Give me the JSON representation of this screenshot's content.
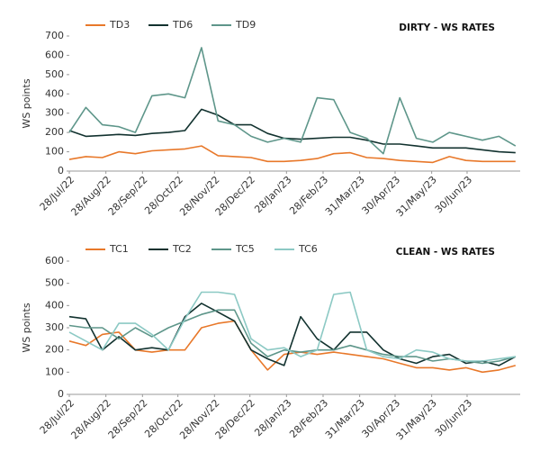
{
  "chart_data": [
    {
      "type": "line",
      "title": "DIRTY - WS RATES",
      "y_label": "WS points",
      "x": [
        "2022-07-28",
        "2022-08-11",
        "2022-08-25",
        "2022-09-08",
        "2022-09-22",
        "2022-10-06",
        "2022-10-20",
        "2022-11-03",
        "2022-11-17",
        "2022-12-01",
        "2022-12-15",
        "2022-12-29",
        "2023-01-12",
        "2023-01-26",
        "2023-02-09",
        "2023-02-23",
        "2023-03-09",
        "2023-03-23",
        "2023-04-06",
        "2023-04-20",
        "2023-05-04",
        "2023-05-18",
        "2023-06-01",
        "2023-06-15",
        "2023-06-29",
        "2023-07-13",
        "2023-07-27",
        "2023-08-10"
      ],
      "xlim": [
        "2022-07-28",
        "2023-08-14"
      ],
      "xticks": [
        {
          "value": "2022-07-28",
          "label": "28/Jul/22"
        },
        {
          "value": "2022-08-28",
          "label": "28/Aug/22"
        },
        {
          "value": "2022-09-28",
          "label": "28/Sep/22"
        },
        {
          "value": "2022-10-28",
          "label": "28/Oct/22"
        },
        {
          "value": "2022-11-28",
          "label": "28/Nov/22"
        },
        {
          "value": "2022-12-28",
          "label": "28/Dec/22"
        },
        {
          "value": "2023-01-28",
          "label": "28/Jan/23"
        },
        {
          "value": "2023-02-28",
          "label": "28/Feb/23"
        },
        {
          "value": "2023-03-31",
          "label": "31/Mar/23"
        },
        {
          "value": "2023-04-30",
          "label": "30/Apr/23"
        },
        {
          "value": "2023-05-31",
          "label": "31/May/23"
        },
        {
          "value": "2023-06-30",
          "label": "30/Jun/23"
        }
      ],
      "ylim": [
        0,
        700
      ],
      "yticks": [
        0,
        100,
        200,
        300,
        400,
        500,
        600,
        700
      ],
      "series": [
        {
          "name": "TD3",
          "color": "#e8782a",
          "values": [
            60,
            75,
            70,
            100,
            90,
            105,
            110,
            115,
            130,
            80,
            75,
            70,
            50,
            50,
            55,
            65,
            90,
            95,
            70,
            65,
            55,
            50,
            45,
            75,
            55,
            50,
            50,
            50
          ]
        },
        {
          "name": "TD6",
          "color": "#12322f",
          "values": [
            210,
            180,
            185,
            190,
            185,
            195,
            200,
            210,
            320,
            290,
            240,
            240,
            195,
            170,
            165,
            170,
            175,
            175,
            160,
            140,
            140,
            130,
            120,
            120,
            120,
            110,
            100,
            95
          ]
        },
        {
          "name": "TD9",
          "color": "#5e968a",
          "values": [
            200,
            330,
            240,
            230,
            200,
            390,
            400,
            380,
            640,
            260,
            240,
            180,
            150,
            170,
            150,
            380,
            370,
            200,
            170,
            90,
            380,
            170,
            150,
            200,
            180,
            160,
            180,
            130
          ]
        }
      ]
    },
    {
      "type": "line",
      "title": "CLEAN - WS RATES",
      "y_label": "WS points",
      "x": [
        "2022-07-28",
        "2022-08-11",
        "2022-08-25",
        "2022-09-08",
        "2022-09-22",
        "2022-10-06",
        "2022-10-20",
        "2022-11-03",
        "2022-11-17",
        "2022-12-01",
        "2022-12-15",
        "2022-12-29",
        "2023-01-12",
        "2023-01-26",
        "2023-02-09",
        "2023-02-23",
        "2023-03-09",
        "2023-03-23",
        "2023-04-06",
        "2023-04-20",
        "2023-05-04",
        "2023-05-18",
        "2023-06-01",
        "2023-06-15",
        "2023-06-29",
        "2023-07-13",
        "2023-07-27",
        "2023-08-10"
      ],
      "xlim": [
        "2022-07-28",
        "2023-08-14"
      ],
      "xticks": [
        {
          "value": "2022-07-28",
          "label": "28/Jul/22"
        },
        {
          "value": "2022-08-28",
          "label": "28/Aug/22"
        },
        {
          "value": "2022-09-28",
          "label": "28/Sep/22"
        },
        {
          "value": "2022-10-28",
          "label": "28/Oct/22"
        },
        {
          "value": "2022-11-28",
          "label": "28/Nov/22"
        },
        {
          "value": "2022-12-28",
          "label": "28/Dec/22"
        },
        {
          "value": "2023-01-28",
          "label": "28/Jan/23"
        },
        {
          "value": "2023-02-28",
          "label": "28/Feb/23"
        },
        {
          "value": "2023-03-31",
          "label": "31/Mar/23"
        },
        {
          "value": "2023-04-30",
          "label": "30/Apr/23"
        },
        {
          "value": "2023-05-31",
          "label": "31/May/23"
        },
        {
          "value": "2023-06-30",
          "label": "30/Jun/23"
        }
      ],
      "ylim": [
        0,
        600
      ],
      "yticks": [
        0,
        100,
        200,
        300,
        400,
        500,
        600
      ],
      "series": [
        {
          "name": "TC1",
          "color": "#e8782a",
          "values": [
            240,
            220,
            270,
            280,
            200,
            190,
            200,
            200,
            300,
            320,
            330,
            200,
            110,
            180,
            190,
            180,
            190,
            180,
            170,
            160,
            140,
            120,
            120,
            110,
            120,
            100,
            110,
            130
          ]
        },
        {
          "name": "TC2",
          "color": "#12322f",
          "values": [
            350,
            340,
            200,
            260,
            200,
            210,
            200,
            350,
            410,
            370,
            330,
            200,
            160,
            130,
            350,
            250,
            200,
            280,
            280,
            200,
            160,
            140,
            170,
            180,
            140,
            150,
            130,
            170
          ]
        },
        {
          "name": "TC5",
          "color": "#5e968a",
          "values": [
            310,
            300,
            300,
            250,
            300,
            260,
            300,
            330,
            360,
            380,
            380,
            230,
            170,
            200,
            190,
            200,
            200,
            220,
            200,
            180,
            170,
            170,
            150,
            160,
            150,
            140,
            150,
            170
          ]
        },
        {
          "name": "TC6",
          "color": "#8cc9c4",
          "values": [
            280,
            240,
            200,
            320,
            320,
            270,
            200,
            340,
            460,
            460,
            450,
            250,
            200,
            210,
            170,
            200,
            450,
            460,
            200,
            170,
            160,
            200,
            190,
            160,
            150,
            150,
            160,
            170
          ]
        }
      ]
    }
  ]
}
